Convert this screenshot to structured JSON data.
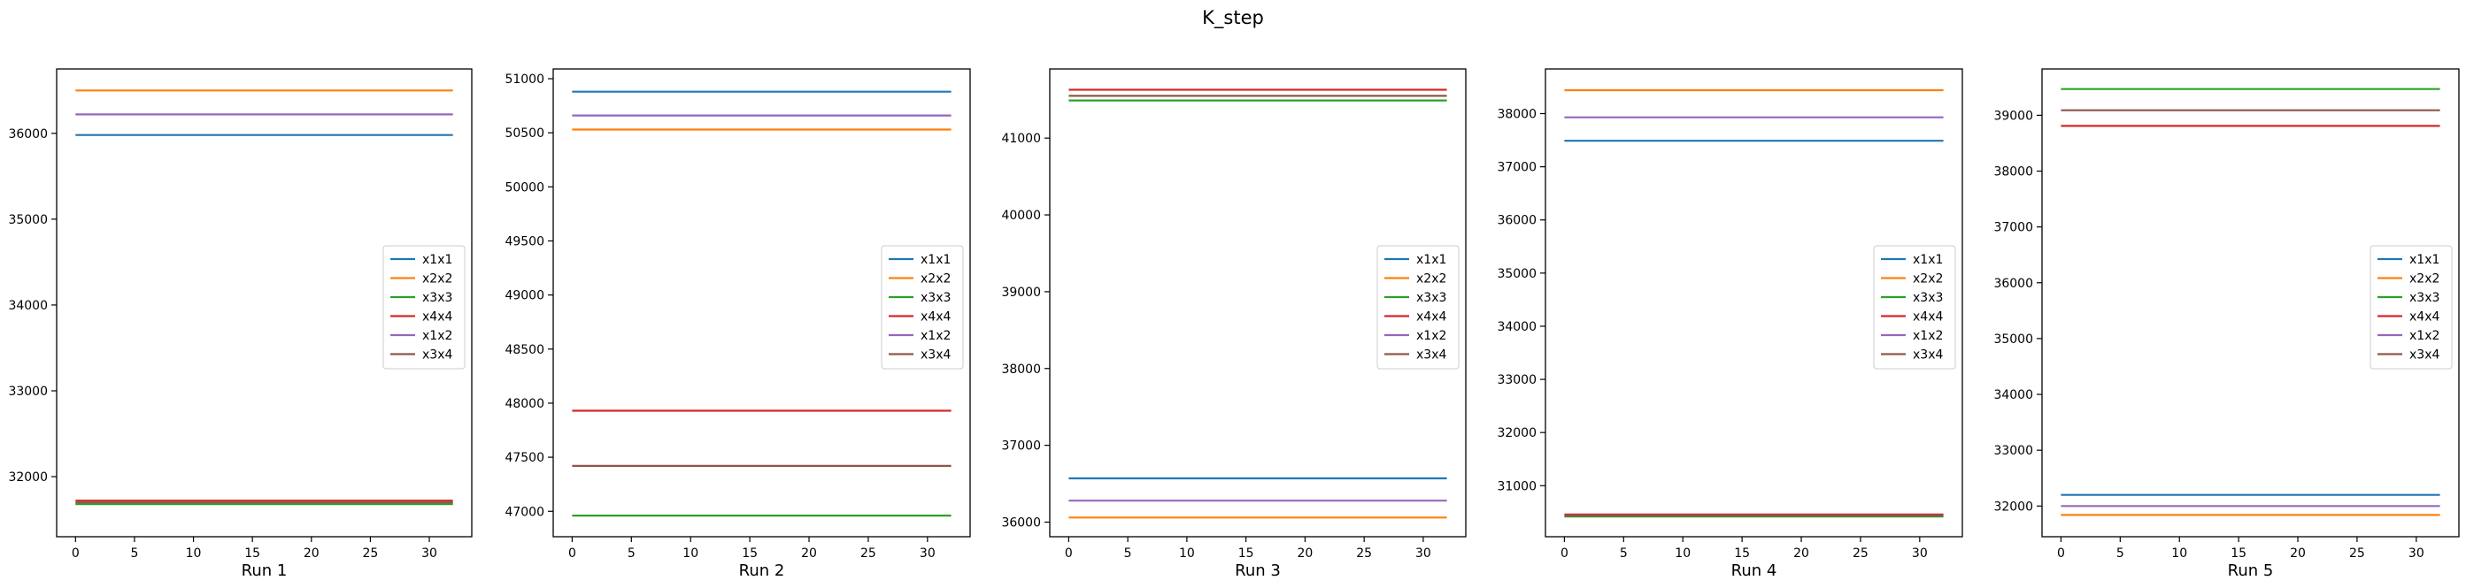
{
  "figure": {
    "title": "K_step"
  },
  "colors": {
    "x1x1": "#1f77b4",
    "x2x2": "#ff7f0e",
    "x3x3": "#2ca02c",
    "x4x4": "#d62728",
    "x1x2": "#9467bd",
    "x3x4": "#8c564b"
  },
  "chart_data": [
    {
      "type": "line",
      "xlabel": "Run 1",
      "ylabel": "",
      "xlim": [
        -1.6,
        33.6
      ],
      "ylim": [
        31300,
        36750
      ],
      "xticks": [
        0,
        5,
        10,
        15,
        20,
        25,
        30
      ],
      "yticks": [
        32000,
        33000,
        34000,
        35000,
        36000
      ],
      "x": [
        0,
        32
      ],
      "legend": "center-right",
      "series": [
        {
          "name": "x1x1",
          "values": [
            35980,
            35980
          ]
        },
        {
          "name": "x2x2",
          "values": [
            36500,
            36500
          ]
        },
        {
          "name": "x3x3",
          "values": [
            31680,
            31680
          ]
        },
        {
          "name": "x4x4",
          "values": [
            31720,
            31720
          ]
        },
        {
          "name": "x1x2",
          "values": [
            36220,
            36220
          ]
        },
        {
          "name": "x3x4",
          "values": [
            31700,
            31700
          ]
        }
      ]
    },
    {
      "type": "line",
      "xlabel": "Run 2",
      "ylabel": "",
      "xlim": [
        -1.6,
        33.6
      ],
      "ylim": [
        46765,
        51090
      ],
      "xticks": [
        0,
        5,
        10,
        15,
        20,
        25,
        30
      ],
      "yticks": [
        47000,
        47500,
        48000,
        48500,
        49000,
        49500,
        50000,
        50500,
        51000
      ],
      "x": [
        0,
        32
      ],
      "legend": "center-right",
      "series": [
        {
          "name": "x1x1",
          "values": [
            50880,
            50880
          ]
        },
        {
          "name": "x2x2",
          "values": [
            50530,
            50530
          ]
        },
        {
          "name": "x3x3",
          "values": [
            46960,
            46960
          ]
        },
        {
          "name": "x4x4",
          "values": [
            47930,
            47930
          ]
        },
        {
          "name": "x1x2",
          "values": [
            50660,
            50660
          ]
        },
        {
          "name": "x3x4",
          "values": [
            47420,
            47420
          ]
        }
      ]
    },
    {
      "type": "line",
      "xlabel": "Run 3",
      "ylabel": "",
      "xlim": [
        -1.6,
        33.6
      ],
      "ylim": [
        35810,
        41900
      ],
      "xticks": [
        0,
        5,
        10,
        15,
        20,
        25,
        30
      ],
      "yticks": [
        36000,
        37000,
        38000,
        39000,
        40000,
        41000
      ],
      "x": [
        0,
        32
      ],
      "legend": "center-right",
      "series": [
        {
          "name": "x1x1",
          "values": [
            36570,
            36570
          ]
        },
        {
          "name": "x2x2",
          "values": [
            36060,
            36060
          ]
        },
        {
          "name": "x3x3",
          "values": [
            41490,
            41490
          ]
        },
        {
          "name": "x4x4",
          "values": [
            41630,
            41630
          ]
        },
        {
          "name": "x1x2",
          "values": [
            36280,
            36280
          ]
        },
        {
          "name": "x3x4",
          "values": [
            41550,
            41550
          ]
        }
      ]
    },
    {
      "type": "line",
      "xlabel": "Run 4",
      "ylabel": "",
      "xlim": [
        -1.6,
        33.6
      ],
      "ylim": [
        30040,
        38840
      ],
      "xticks": [
        0,
        5,
        10,
        15,
        20,
        25,
        30
      ],
      "yticks": [
        31000,
        32000,
        33000,
        34000,
        35000,
        36000,
        37000,
        38000
      ],
      "x": [
        0,
        32
      ],
      "legend": "center-right",
      "series": [
        {
          "name": "x1x1",
          "values": [
            37490,
            37490
          ]
        },
        {
          "name": "x2x2",
          "values": [
            38440,
            38440
          ]
        },
        {
          "name": "x3x3",
          "values": [
            30420,
            30420
          ]
        },
        {
          "name": "x4x4",
          "values": [
            30460,
            30460
          ]
        },
        {
          "name": "x1x2",
          "values": [
            37930,
            37930
          ]
        },
        {
          "name": "x3x4",
          "values": [
            30440,
            30440
          ]
        }
      ]
    },
    {
      "type": "line",
      "xlabel": "Run 5",
      "ylabel": "",
      "xlim": [
        -1.6,
        33.6
      ],
      "ylim": [
        31450,
        39830
      ],
      "xticks": [
        0,
        5,
        10,
        15,
        20,
        25,
        30
      ],
      "yticks": [
        32000,
        33000,
        34000,
        35000,
        36000,
        37000,
        38000,
        39000
      ],
      "x": [
        0,
        32
      ],
      "legend": "center-right",
      "series": [
        {
          "name": "x1x1",
          "values": [
            32200,
            32200
          ]
        },
        {
          "name": "x2x2",
          "values": [
            31840,
            31840
          ]
        },
        {
          "name": "x3x3",
          "values": [
            39470,
            39470
          ]
        },
        {
          "name": "x4x4",
          "values": [
            38810,
            38810
          ]
        },
        {
          "name": "x1x2",
          "values": [
            32000,
            32000
          ]
        },
        {
          "name": "x3x4",
          "values": [
            39090,
            39090
          ]
        }
      ]
    }
  ]
}
